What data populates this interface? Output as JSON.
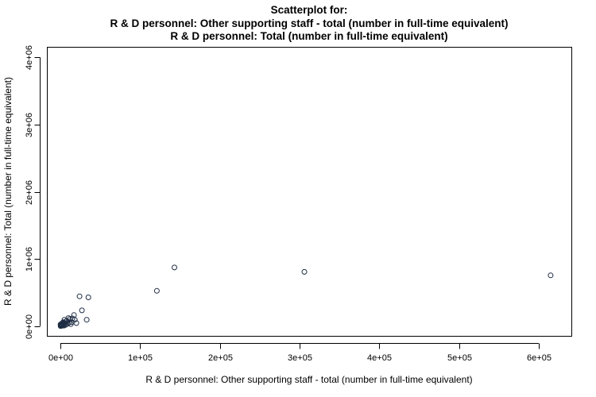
{
  "chart_data": {
    "type": "scatter",
    "title": [
      "Scatterplot for:",
      "R & D personnel: Other supporting staff - total (number in full-time equivalent)",
      "R & D personnel: Total (number in full-time equivalent)"
    ],
    "xlabel": "R & D personnel: Other supporting staff - total (number in full-time equivalent)",
    "ylabel": "R & D personnel: Total (number in full-time equivalent)",
    "xlim": [
      -16000,
      641000
    ],
    "ylim": [
      -145000,
      4145000
    ],
    "x_ticks": [
      0,
      100000,
      200000,
      300000,
      400000,
      500000,
      600000
    ],
    "x_tick_labels": [
      "0e+00",
      "1e+05",
      "2e+05",
      "3e+05",
      "4e+05",
      "5e+05",
      "6e+05"
    ],
    "y_ticks": [
      0,
      1000000,
      2000000,
      3000000,
      4000000
    ],
    "y_tick_labels": [
      "0e+00",
      "1e+06",
      "2e+06",
      "3e+06",
      "4e+06"
    ],
    "grid": false,
    "marker": "open-circle",
    "point_color": "#1f2d44",
    "points": [
      [
        615000,
        755000
      ],
      [
        306000,
        807000
      ],
      [
        143000,
        872000
      ],
      [
        121000,
        525000
      ],
      [
        35000,
        428000
      ],
      [
        24000,
        443000
      ],
      [
        33000,
        95000
      ],
      [
        27000,
        234000
      ],
      [
        17000,
        165000
      ],
      [
        20000,
        45000
      ],
      [
        15000,
        115000
      ],
      [
        14000,
        60000
      ],
      [
        12000,
        105000
      ],
      [
        10000,
        120000
      ],
      [
        9000,
        35000
      ],
      [
        7000,
        70000
      ],
      [
        6000,
        45000
      ],
      [
        5000,
        95000
      ],
      [
        5000,
        20000
      ],
      [
        4000,
        40000
      ],
      [
        3500,
        60000
      ],
      [
        3000,
        15000
      ],
      [
        2500,
        30000
      ],
      [
        2000,
        8000
      ],
      [
        1500,
        22000
      ],
      [
        1000,
        5000
      ],
      [
        800,
        12000
      ],
      [
        500,
        3000
      ],
      [
        300,
        2000
      ],
      [
        200,
        25000
      ],
      [
        2200,
        12000
      ],
      [
        4200,
        8000
      ],
      [
        6500,
        18000
      ],
      [
        8000,
        80000
      ],
      [
        11000,
        55000
      ],
      [
        13000,
        30000
      ],
      [
        18000,
        95000
      ],
      [
        1800,
        40000
      ],
      [
        3200,
        50000
      ],
      [
        600,
        15000
      ]
    ]
  }
}
